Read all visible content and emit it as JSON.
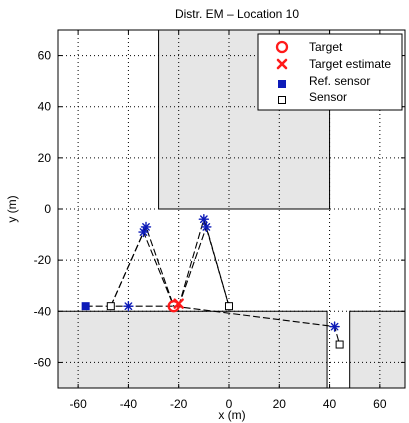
{
  "chart_data": {
    "type": "scatter",
    "title": "Distr. EM – Location 10",
    "xlabel": "x (m)",
    "ylabel": "y (m)",
    "xlim": [
      -68,
      70
    ],
    "ylim": [
      -70,
      70
    ],
    "xticks": [
      -60,
      -40,
      -20,
      0,
      20,
      40,
      60
    ],
    "yticks": [
      60,
      40,
      20,
      0,
      -20,
      -40,
      -60
    ],
    "grid": true,
    "legend": {
      "position": "top-right",
      "entries": [
        {
          "key": "target",
          "label": "Target"
        },
        {
          "key": "target_estimate",
          "label": "Target estimate"
        },
        {
          "key": "ref_sensor",
          "label": "Ref. sensor"
        },
        {
          "key": "sensor",
          "label": "Sensor"
        }
      ]
    },
    "obstacles": [
      {
        "name": "upper-building",
        "polygon": [
          [
            -28,
            0
          ],
          [
            40,
            0
          ],
          [
            40,
            70
          ],
          [
            -28,
            70
          ]
        ]
      },
      {
        "name": "lower-left-ground",
        "polygon": [
          [
            -68,
            -40
          ],
          [
            39,
            -40
          ],
          [
            39,
            -70
          ],
          [
            -68,
            -70
          ]
        ]
      },
      {
        "name": "lower-right-ground",
        "polygon": [
          [
            48,
            -40
          ],
          [
            70,
            -40
          ],
          [
            70,
            -70
          ],
          [
            48,
            -70
          ]
        ]
      }
    ],
    "target": {
      "x": -22,
      "y": -38
    },
    "target_estimate": {
      "x": -20,
      "y": -37
    },
    "ref_sensor": {
      "x": -57,
      "y": -38
    },
    "sensors": [
      {
        "x": -47,
        "y": -38
      },
      {
        "x": 0,
        "y": -38
      },
      {
        "x": 44,
        "y": -53
      }
    ],
    "paths": [
      [
        [
          -57,
          -38
        ],
        [
          -47,
          -38
        ],
        [
          -40,
          -38
        ],
        [
          -22,
          -38
        ]
      ],
      [
        [
          -47,
          -38
        ],
        [
          -33,
          -7
        ],
        [
          -22,
          -38
        ]
      ],
      [
        [
          -47,
          -38
        ],
        [
          -34,
          -9
        ],
        [
          -22,
          -38
        ]
      ],
      [
        [
          -20,
          -38
        ],
        [
          -10,
          -4
        ],
        [
          0,
          -38
        ]
      ],
      [
        [
          -20,
          -38
        ],
        [
          -9,
          -7
        ],
        [
          0,
          -38
        ]
      ],
      [
        [
          -22,
          -38
        ],
        [
          42,
          -46
        ],
        [
          44,
          -53
        ]
      ]
    ],
    "reflection_points": [
      {
        "x": -40,
        "y": -38
      },
      {
        "x": -33,
        "y": -7
      },
      {
        "x": -34,
        "y": -9
      },
      {
        "x": -10,
        "y": -4
      },
      {
        "x": -9,
        "y": -7
      },
      {
        "x": 42,
        "y": -46
      }
    ]
  }
}
